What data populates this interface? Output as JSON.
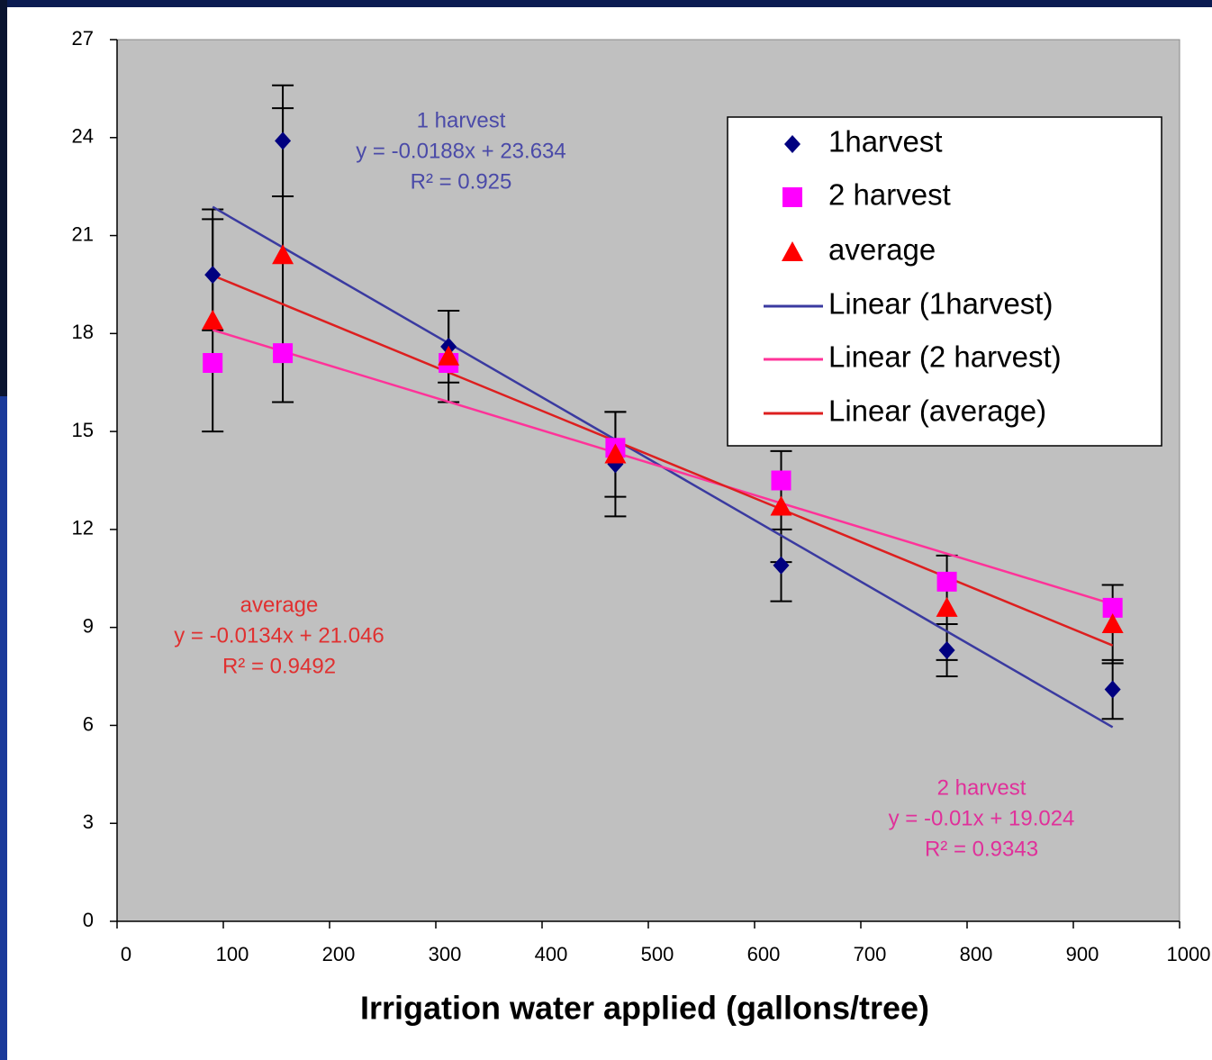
{
  "chart_data": {
    "type": "scatter",
    "x_label": "Irrigation water applied (gallons/tree)",
    "xlim": [
      0,
      1000
    ],
    "xticks": [
      0,
      100,
      200,
      300,
      400,
      500,
      600,
      700,
      800,
      900,
      1000
    ],
    "ylim": [
      0,
      27
    ],
    "yticks": [
      0,
      3,
      6,
      9,
      12,
      15,
      18,
      21,
      24,
      27
    ],
    "legend": "upper right",
    "series": [
      {
        "name": "1harvest",
        "marker": "diamond",
        "color": "#000080",
        "trend_name": "Linear (1harvest)",
        "trend_color": "#3a3aa0",
        "x": [
          90,
          156,
          312,
          469,
          625,
          781,
          937
        ],
        "values": [
          19.8,
          23.9,
          17.6,
          14.0,
          10.9,
          8.3,
          7.1
        ],
        "errors": [
          1.7,
          1.7,
          1.1,
          1.6,
          1.1,
          0.8,
          0.9
        ]
      },
      {
        "name": "2 harvest",
        "marker": "square",
        "color": "#ff00ff",
        "trend_name": "Linear (2 harvest)",
        "trend_color": "#ff3399",
        "x": [
          90,
          156,
          312,
          469,
          625,
          781,
          937
        ],
        "values": [
          17.1,
          17.4,
          17.1,
          14.5,
          13.5,
          10.4,
          9.6
        ]
      },
      {
        "name": "average",
        "marker": "triangle",
        "color": "#ff0000",
        "trend_name": "Linear (average)",
        "trend_color": "#dd1f1f",
        "x": [
          90,
          156,
          312,
          469,
          625,
          781,
          937
        ],
        "values": [
          18.4,
          20.4,
          17.3,
          14.3,
          12.7,
          9.6,
          9.1
        ],
        "errors": [
          3.4,
          4.5,
          1.4,
          1.3,
          1.7,
          1.6,
          1.2
        ]
      }
    ],
    "annotations": [
      {
        "color": "#4a4aa8",
        "lines": [
          "1 harvest",
          "y = -0.0188x + 23.634",
          "R² = 0.925"
        ]
      },
      {
        "color": "#e03030",
        "lines": [
          "average",
          "y = -0.0134x + 21.046",
          "R² = 0.9492"
        ]
      },
      {
        "color": "#e0309a",
        "lines": [
          "2 harvest",
          "y = -0.01x + 19.024",
          "R² = 0.9343"
        ]
      }
    ]
  }
}
